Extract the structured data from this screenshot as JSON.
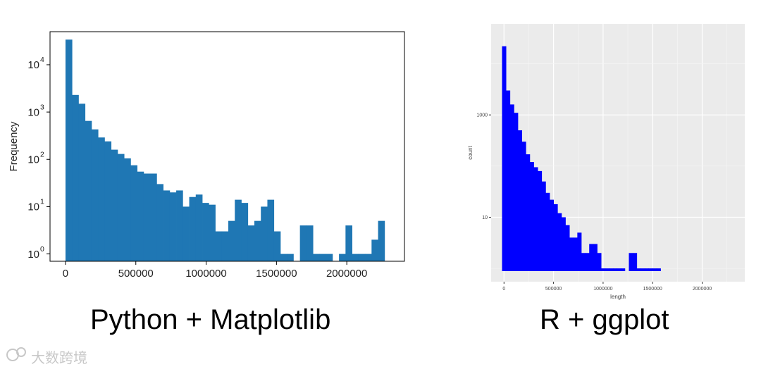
{
  "captions": {
    "left": "Python + Matplotlib",
    "right": "R + ggplot"
  },
  "watermark": {
    "text": "大数跨境"
  },
  "chart_data": [
    {
      "type": "bar",
      "library": "matplotlib",
      "ylabel": "Frequency",
      "xlabel": "",
      "yscale": "log",
      "ylim": [
        0.7,
        50000
      ],
      "xlim": [
        -110000,
        2410000
      ],
      "x_ticks": [
        {
          "value": 0,
          "label": "0"
        },
        {
          "value": 500000,
          "label": "500000"
        },
        {
          "value": 1000000,
          "label": "1000000"
        },
        {
          "value": 1500000,
          "label": "1500000"
        },
        {
          "value": 2000000,
          "label": "2000000"
        }
      ],
      "y_ticks": [
        {
          "value": 1,
          "label": "10",
          "exp": "0"
        },
        {
          "value": 10,
          "label": "10",
          "exp": "1"
        },
        {
          "value": 100,
          "label": "10",
          "exp": "2"
        },
        {
          "value": 1000,
          "label": "10",
          "exp": "3"
        },
        {
          "value": 10000,
          "label": "10",
          "exp": "4"
        }
      ],
      "bin_width": 46300,
      "x_start": 0,
      "color": "#1f77b4",
      "values": [
        34000,
        2300,
        1500,
        650,
        430,
        290,
        240,
        160,
        130,
        105,
        75,
        55,
        50,
        50,
        30,
        22,
        20,
        22,
        10,
        16,
        18,
        12,
        11,
        3,
        3,
        5,
        14,
        12,
        4,
        5,
        10,
        14,
        3,
        1,
        1,
        0,
        4,
        4,
        1,
        1,
        1,
        0,
        1,
        4,
        1,
        1,
        1,
        2,
        5
      ]
    },
    {
      "type": "bar",
      "library": "ggplot",
      "xlabel": "length",
      "ylabel": "count",
      "yscale": "log",
      "ylim": [
        0.55,
        60000
      ],
      "xlim": [
        -130000,
        2430000
      ],
      "x_ticks": [
        {
          "value": 0,
          "label": "0"
        },
        {
          "value": 500000,
          "label": "500000"
        },
        {
          "value": 1000000,
          "label": "1000000"
        },
        {
          "value": 1500000,
          "label": "1500000"
        },
        {
          "value": 2000000,
          "label": "2000000"
        }
      ],
      "y_ticks": [
        {
          "value": 10,
          "label": "10"
        },
        {
          "value": 1000,
          "label": "1000"
        }
      ],
      "bin_width": 40000,
      "x_start": -20000,
      "color": "#0000ff",
      "background": "#ebebeb",
      "values": [
        22000,
        3000,
        1600,
        1100,
        500,
        300,
        170,
        120,
        95,
        80,
        50,
        30,
        22,
        18,
        12,
        10,
        7,
        4,
        4,
        5,
        2,
        2,
        3,
        3,
        2,
        1,
        1,
        1,
        1,
        1,
        1,
        0.8,
        2,
        2,
        1,
        1,
        1,
        1,
        1,
        1,
        0,
        0,
        0,
        0,
        0,
        0,
        0,
        0,
        0,
        0,
        0,
        0,
        0,
        0,
        0,
        0,
        0,
        0,
        0
      ]
    }
  ]
}
